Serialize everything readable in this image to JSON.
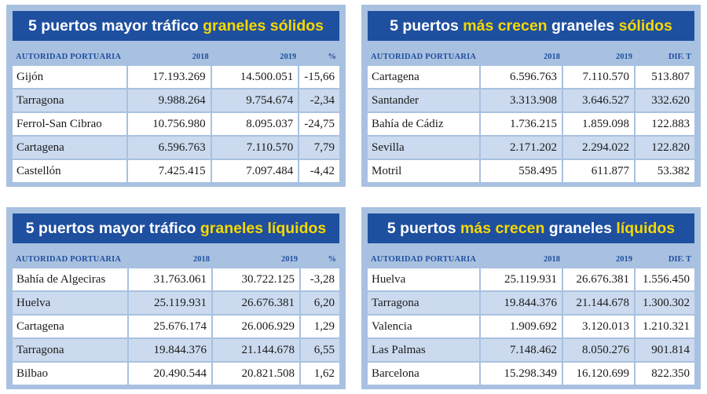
{
  "panels": [
    {
      "title_a": "5 puertos mayor tráfico ",
      "title_b": "graneles sólidos",
      "headers": [
        "AUTORIDAD PORTUARIA",
        "2018",
        "2019",
        "%"
      ],
      "rows": [
        [
          "Gijón",
          "17.193.269",
          "14.500.051",
          "-15,66"
        ],
        [
          "Tarragona",
          "9.988.264",
          "9.754.674",
          "-2,34"
        ],
        [
          "Ferrol-San Cibrao",
          "10.756.980",
          "8.095.037",
          "-24,75"
        ],
        [
          "Cartagena",
          "6.596.763",
          "7.110.570",
          "7,79"
        ],
        [
          "Castellón",
          "7.425.415",
          "7.097.484",
          "-4,42"
        ]
      ]
    },
    {
      "title_a": "5 puertos ",
      "title_b": "más crecen",
      "title_c": " graneles ",
      "title_d": "sólidos",
      "headers": [
        "AUTORIDAD PORTUARIA",
        "2018",
        "2019",
        "DIF. T"
      ],
      "rows": [
        [
          "Cartagena",
          "6.596.763",
          "7.110.570",
          "513.807"
        ],
        [
          "Santander",
          "3.313.908",
          "3.646.527",
          "332.620"
        ],
        [
          "Bahía de Cádiz",
          "1.736.215",
          "1.859.098",
          "122.883"
        ],
        [
          "Sevilla",
          "2.171.202",
          "2.294.022",
          "122.820"
        ],
        [
          "Motril",
          "558.495",
          "611.877",
          "53.382"
        ]
      ]
    },
    {
      "title_a": "5 puertos mayor tráfico ",
      "title_b": "graneles líquidos",
      "headers": [
        "AUTORIDAD PORTUARIA",
        "2018",
        "2019",
        "%"
      ],
      "rows": [
        [
          "Bahía de Algeciras",
          "31.763.061",
          "30.722.125",
          "-3,28"
        ],
        [
          "Huelva",
          "25.119.931",
          "26.676.381",
          "6,20"
        ],
        [
          "Cartagena",
          "25.676.174",
          "26.006.929",
          "1,29"
        ],
        [
          "Tarragona",
          "19.844.376",
          "21.144.678",
          "6,55"
        ],
        [
          "Bilbao",
          "20.490.544",
          "20.821.508",
          "1,62"
        ]
      ]
    },
    {
      "title_a": "5 puertos ",
      "title_b": "más crecen",
      "title_c": " graneles ",
      "title_d": "líquidos",
      "headers": [
        "AUTORIDAD PORTUARIA",
        "2018",
        "2019",
        "DIF. T"
      ],
      "rows": [
        [
          "Huelva",
          "25.119.931",
          "26.676.381",
          "1.556.450"
        ],
        [
          "Tarragona",
          "19.844.376",
          "21.144.678",
          "1.300.302"
        ],
        [
          "Valencia",
          "1.909.692",
          "3.120.013",
          "1.210.321"
        ],
        [
          "Las Palmas",
          "7.148.462",
          "8.050.276",
          "901.814"
        ],
        [
          "Barcelona",
          "15.298.349",
          "16.120.699",
          "822.350"
        ]
      ]
    }
  ]
}
